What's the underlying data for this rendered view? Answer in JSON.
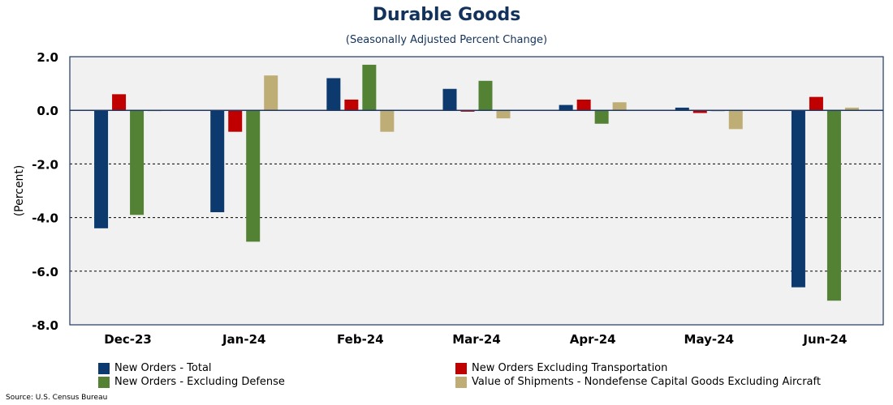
{
  "title": "Durable Goods",
  "subtitle": "(Seasonally Adjusted Percent Change)",
  "source": "Source: U.S. Census Bureau",
  "colors": {
    "plot_bg": "#f1f1f1",
    "frame": "#1f3864",
    "series": [
      "#0d3a6e",
      "#c00000",
      "#548235",
      "#bfad76"
    ]
  },
  "chart_data": {
    "type": "bar",
    "title": "Durable Goods",
    "subtitle": "(Seasonally Adjusted Percent Change)",
    "xlabel": "",
    "ylabel": "(Percent)",
    "ylim": [
      -8.0,
      2.0
    ],
    "yticks": [
      "2.0",
      "0.0",
      "-2.0",
      "-4.0",
      "-6.0",
      "-8.0"
    ],
    "ytick_values": [
      2,
      0,
      -2,
      -4,
      -6,
      -8
    ],
    "grid": "dashed horizontal",
    "legend_position": "bottom",
    "categories": [
      "Dec-23",
      "Jan-24",
      "Feb-24",
      "Mar-24",
      "Apr-24",
      "May-24",
      "Jun-24"
    ],
    "series": [
      {
        "name": "New Orders - Total",
        "values": [
          -4.4,
          -3.8,
          1.2,
          0.8,
          0.2,
          0.1,
          -6.6
        ]
      },
      {
        "name": "New Orders Excluding Transportation",
        "values": [
          0.6,
          -0.8,
          0.4,
          -0.05,
          0.4,
          -0.1,
          0.5
        ]
      },
      {
        "name": "New Orders - Excluding Defense",
        "values": [
          -3.9,
          -4.9,
          1.7,
          1.1,
          -0.5,
          0.0,
          -7.1
        ]
      },
      {
        "name": "Value of Shipments - Nondefense Capital Goods Excluding Aircraft",
        "values": [
          0.0,
          1.3,
          -0.8,
          -0.3,
          0.3,
          -0.7,
          0.1
        ]
      }
    ]
  }
}
